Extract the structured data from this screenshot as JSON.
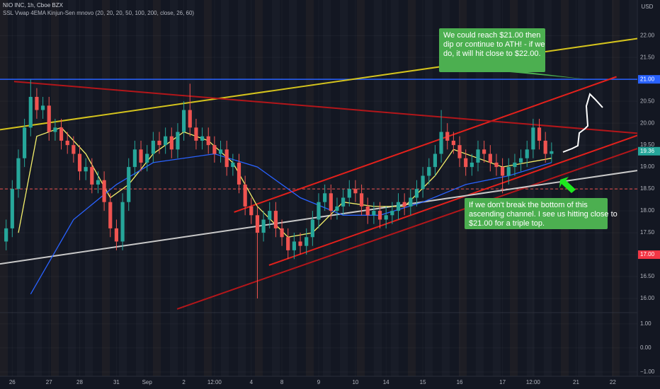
{
  "chart_data": {
    "type": "candlestick",
    "title": "NIO INC, 1h, Cboe BZX",
    "subtitle": "SSL Vwap 4EMA Kinjun-Sen mnovo (20, 20, 20, 50, 100, 200, close, 26, 60)",
    "currency": "USD",
    "up_color": "#26a69a",
    "down_color": "#ef5350",
    "xlim": [
      -1,
      103
    ],
    "ylim": [
      15.71,
      22.81
    ],
    "y2lim": [
      -1.12,
      1.38
    ],
    "xticks": [
      {
        "value": 1,
        "label": "26"
      },
      {
        "value": 7,
        "label": "27"
      },
      {
        "value": 12,
        "label": "28"
      },
      {
        "value": 18,
        "label": "31"
      },
      {
        "value": 23,
        "label": "Sep"
      },
      {
        "value": 29,
        "label": "2"
      },
      {
        "value": 34,
        "label": "12:00"
      },
      {
        "value": 40,
        "label": "4"
      },
      {
        "value": 45,
        "label": "8"
      },
      {
        "value": 51,
        "label": "9"
      },
      {
        "value": 57,
        "label": "10"
      },
      {
        "value": 62,
        "label": "14"
      },
      {
        "value": 68,
        "label": "15"
      },
      {
        "value": 74,
        "label": "16"
      },
      {
        "value": 81,
        "label": "17"
      },
      {
        "value": 86,
        "label": "12:00"
      },
      {
        "value": 93,
        "label": "21"
      },
      {
        "value": 99,
        "label": "22"
      }
    ],
    "yticks": [
      {
        "value": 16,
        "label": "16.00"
      },
      {
        "value": 16.5,
        "label": "16.50"
      },
      {
        "value": 17,
        "label": "17.00"
      },
      {
        "value": 17.5,
        "label": "17.50"
      },
      {
        "value": 18,
        "label": "18.00"
      },
      {
        "value": 18.5,
        "label": "18.50"
      },
      {
        "value": 19,
        "label": "19.00"
      },
      {
        "value": 19.5,
        "label": "19.50"
      },
      {
        "value": 20,
        "label": "20.00"
      },
      {
        "value": 20.5,
        "label": "20.50"
      },
      {
        "value": 21,
        "label": "21.00"
      },
      {
        "value": 21.5,
        "label": "21.50"
      },
      {
        "value": 22,
        "label": "22.00"
      }
    ],
    "y2ticks": [
      {
        "value": 1,
        "label": "1.00"
      },
      {
        "value": 0,
        "label": "0.00"
      },
      {
        "value": -1,
        "label": "−1.00"
      }
    ],
    "open": [
      17.3,
      17.6,
      18.5,
      19.2,
      19.9,
      20.6,
      20.3,
      20.4,
      19.8,
      19.9,
      19.6,
      19.5,
      19.3,
      18.9,
      19.0,
      18.6,
      18.7,
      18.2,
      17.6,
      17.3,
      18.2,
      19.0,
      19.4,
      19.1,
      19.3,
      19.6,
      19.5,
      19.7,
      19.4,
      19.8,
      20.3,
      19.9,
      19.6,
      19.7,
      19.5,
      19.3,
      19.4,
      19.0,
      19.1,
      18.6,
      18.1,
      17.9,
      17.5,
      17.8,
      18.0,
      17.6,
      17.4,
      17.1,
      17.3,
      17.2,
      17.4,
      17.8,
      18.2,
      18.4,
      18.0,
      18.1,
      18.3,
      18.5,
      18.4,
      18.1,
      17.9,
      18.0,
      17.8,
      17.9,
      18.0,
      18.2,
      18.1,
      18.3,
      18.5,
      18.8,
      19.0,
      19.3,
      19.8,
      19.6,
      19.5,
      19.2,
      19.0,
      19.1,
      19.4,
      19.3,
      19.1,
      19.0,
      18.8,
      19.0,
      19.1,
      19.2,
      19.4,
      19.9,
      19.6,
      19.3
    ],
    "high": [
      17.8,
      18.7,
      19.4,
      20.1,
      21.0,
      20.8,
      20.6,
      20.6,
      20.1,
      20.1,
      19.8,
      19.7,
      19.5,
      19.2,
      19.2,
      18.9,
      18.9,
      18.4,
      17.8,
      18.4,
      19.2,
      19.6,
      19.6,
      19.5,
      19.8,
      19.8,
      19.9,
      19.9,
      20.0,
      20.5,
      20.9,
      20.1,
      19.9,
      19.9,
      19.7,
      19.6,
      19.6,
      19.3,
      19.3,
      18.8,
      18.3,
      18.1,
      18.0,
      18.2,
      18.2,
      17.8,
      17.6,
      17.5,
      17.5,
      17.6,
      18.0,
      18.4,
      18.6,
      18.6,
      18.3,
      18.5,
      18.7,
      18.7,
      18.6,
      18.3,
      18.2,
      18.2,
      18.1,
      18.2,
      18.4,
      18.4,
      18.5,
      18.7,
      19.0,
      19.2,
      19.5,
      20.3,
      20.0,
      19.8,
      19.7,
      19.4,
      19.3,
      19.6,
      19.6,
      19.5,
      19.3,
      19.2,
      19.2,
      19.3,
      19.4,
      19.6,
      20.1,
      20.1,
      19.8,
      19.56
    ],
    "low": [
      17.1,
      17.4,
      18.3,
      19.0,
      19.7,
      20.1,
      20.1,
      19.6,
      19.6,
      19.4,
      19.3,
      19.1,
      18.7,
      18.7,
      18.4,
      18.4,
      18.0,
      17.4,
      17.1,
      17.1,
      18.0,
      18.8,
      18.9,
      18.9,
      19.1,
      19.3,
      19.3,
      19.2,
      19.2,
      19.6,
      19.7,
      19.4,
      19.4,
      19.3,
      19.1,
      19.1,
      18.8,
      18.8,
      18.4,
      17.9,
      17.7,
      16.0,
      17.3,
      17.6,
      17.4,
      17.2,
      16.9,
      16.9,
      17.0,
      17.0,
      17.2,
      17.6,
      18.0,
      17.8,
      17.8,
      17.9,
      18.1,
      18.2,
      17.9,
      17.7,
      17.7,
      17.6,
      17.6,
      17.7,
      17.8,
      17.9,
      17.9,
      18.1,
      18.3,
      18.6,
      18.8,
      19.1,
      19.4,
      19.3,
      19.0,
      18.8,
      18.8,
      18.9,
      19.1,
      18.9,
      18.8,
      18.4,
      18.6,
      18.8,
      18.9,
      19.0,
      19.2,
      19.4,
      19.1,
      19.1
    ],
    "close": [
      17.6,
      18.5,
      19.2,
      19.9,
      20.6,
      20.3,
      20.4,
      19.8,
      19.9,
      19.6,
      19.5,
      19.3,
      18.9,
      19.0,
      18.6,
      18.7,
      18.2,
      17.6,
      17.3,
      18.2,
      19.0,
      19.4,
      19.1,
      19.3,
      19.6,
      19.5,
      19.7,
      19.4,
      19.8,
      20.3,
      19.9,
      19.6,
      19.7,
      19.5,
      19.3,
      19.4,
      19.0,
      19.1,
      18.6,
      18.1,
      17.9,
      17.5,
      17.8,
      18.0,
      17.6,
      17.4,
      17.1,
      17.3,
      17.2,
      17.4,
      17.8,
      18.2,
      18.4,
      18.0,
      18.1,
      18.3,
      18.5,
      18.4,
      18.1,
      17.9,
      18.0,
      17.8,
      17.9,
      18.0,
      18.2,
      18.1,
      18.3,
      18.5,
      18.8,
      19.0,
      19.3,
      19.8,
      19.6,
      19.5,
      19.2,
      19.0,
      19.1,
      19.4,
      19.3,
      19.1,
      19.0,
      18.8,
      19.0,
      19.1,
      19.2,
      19.4,
      19.9,
      19.6,
      19.3,
      19.36
    ],
    "series": [
      {
        "color": "#f5f06a",
        "x": [
          2,
          5,
          9,
          13,
          17,
          20,
          24,
          29,
          33,
          37,
          41,
          46,
          50,
          55,
          60,
          65,
          70,
          73,
          77,
          81,
          85,
          89
        ],
        "values": [
          17.5,
          19.7,
          19.9,
          19.3,
          18.3,
          18.6,
          19.3,
          19.8,
          19.6,
          19.1,
          18.1,
          17.4,
          17.5,
          18.2,
          18.1,
          18.1,
          18.8,
          19.4,
          19.2,
          19.0,
          19.1,
          19.2
        ]
      },
      {
        "color": "#2962ff",
        "x": [
          4,
          11,
          18,
          24,
          34,
          41,
          48,
          55,
          61,
          68,
          75,
          82,
          89
        ],
        "values": [
          16.1,
          17.8,
          18.6,
          19.1,
          19.3,
          19.0,
          18.3,
          17.9,
          17.9,
          18.2,
          18.6,
          18.8,
          19.1
        ]
      }
    ],
    "drawings": [
      {
        "color": "#d4c31d",
        "x": [
          -1,
          103
        ],
        "values": [
          19.85,
          21.93
        ]
      },
      {
        "color": "#e3201b",
        "x": [
          37.2,
          99.6
        ],
        "values": [
          17.97,
          21.06
        ]
      },
      {
        "color": "#e3201b",
        "x": [
          42.9,
          103
        ],
        "values": [
          16.76,
          19.72
        ]
      },
      {
        "color": "#b2161a",
        "x": [
          1.3,
          103
        ],
        "values": [
          20.95,
          19.77
        ]
      },
      {
        "color": "#b2161a",
        "x": [
          27.9,
          103
        ],
        "values": [
          15.76,
          19.42
        ]
      },
      {
        "color": "#c8c8c8",
        "x": [
          -1,
          103
        ],
        "values": [
          16.79,
          18.92
        ]
      }
    ],
    "hlines": [
      {
        "value": 21,
        "color": "#2962ff",
        "dash": false
      },
      {
        "value": 18.5,
        "color": "#ef5350",
        "dash": true
      }
    ],
    "price_labels": [
      {
        "value": 21,
        "label": "21.00",
        "color": "#2962ff"
      },
      {
        "value": 19.36,
        "label": "19.36",
        "color": "#26a69a"
      },
      {
        "value": 17,
        "label": "17.00",
        "color": "#f23645"
      }
    ],
    "annotations": [
      {
        "lines": [
          "We could reach $21.00 then",
          "dip or continue to ATH! - if we",
          "do, it will hit close to $22.00."
        ]
      },
      {
        "lines": [
          "If we don't break the bottom of this",
          "ascending channel. I see us hitting close to",
          "$21.00 for a triple top."
        ]
      }
    ]
  }
}
